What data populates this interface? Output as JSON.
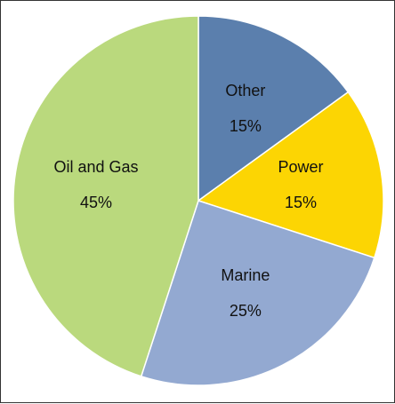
{
  "chart_data": {
    "type": "pie",
    "title": "",
    "start_angle_deg": 0,
    "direction": "clockwise",
    "slices": [
      {
        "label": "Other",
        "value": 15,
        "value_label": "15%",
        "color": "#5b7fad"
      },
      {
        "label": "Power",
        "value": 15,
        "value_label": "15%",
        "color": "#fcd503"
      },
      {
        "label": "Marine",
        "value": 25,
        "value_label": "25%",
        "color": "#93a9d1"
      },
      {
        "label": "Oil and Gas",
        "value": 45,
        "value_label": "45%",
        "color": "#bad97d"
      }
    ],
    "legend": "none",
    "slice_border_color": "#ffffff"
  }
}
